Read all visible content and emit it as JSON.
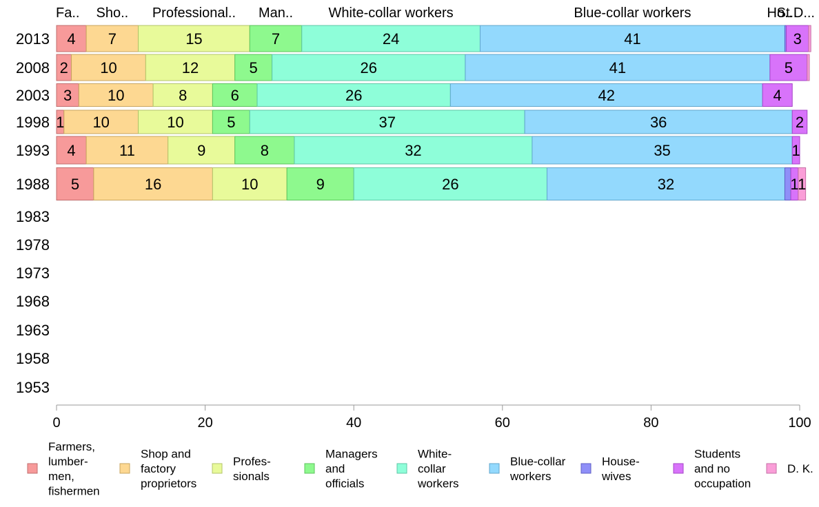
{
  "chart_data": {
    "type": "bar",
    "orientation": "horizontal",
    "stacked": true,
    "categories": [
      "2013",
      "2008",
      "2003",
      "1998",
      "1993",
      "1988",
      "1983",
      "1978",
      "1973",
      "1968",
      "1963",
      "1958",
      "1953"
    ],
    "xlim": [
      0,
      100
    ],
    "xticks": [
      0,
      20,
      40,
      60,
      80,
      100
    ],
    "grid": false,
    "legend_position": "bottom",
    "top_labels": [
      "Fa..",
      "Sho..",
      "Professional..",
      "Man..",
      "White-collar workers",
      "Blue-collar workers",
      "Ho..",
      "St..",
      "D..."
    ],
    "series": [
      {
        "name": "Farmers, lumber-men, fishermen",
        "legend_lines": [
          "Farmers,",
          "lumber-",
          "men,",
          "fishermen"
        ],
        "color": "#f79a9a",
        "edge": "#c26d6d",
        "values": [
          4,
          2,
          3,
          1,
          4,
          5,
          null,
          null,
          null,
          null,
          null,
          null,
          null
        ]
      },
      {
        "name": "Shop and factory proprietors",
        "legend_lines": [
          "Shop and",
          "factory",
          "proprietors"
        ],
        "color": "#fdd892",
        "edge": "#c8a55f",
        "values": [
          7,
          10,
          10,
          10,
          11,
          16,
          null,
          null,
          null,
          null,
          null,
          null,
          null
        ]
      },
      {
        "name": "Profes-sionals",
        "legend_lines": [
          "Profes-",
          "sionals"
        ],
        "color": "#e8fa9a",
        "edge": "#b3c46a",
        "values": [
          15,
          12,
          8,
          10,
          9,
          10,
          null,
          null,
          null,
          null,
          null,
          null,
          null
        ]
      },
      {
        "name": "Managers and officials",
        "legend_lines": [
          "Managers",
          "and",
          "officials"
        ],
        "color": "#8ef98e",
        "edge": "#5cc45c",
        "values": [
          7,
          5,
          6,
          5,
          8,
          9,
          null,
          null,
          null,
          null,
          null,
          null,
          null
        ]
      },
      {
        "name": "White-collar workers",
        "legend_lines": [
          "White-",
          "collar",
          "workers"
        ],
        "color": "#8efed9",
        "edge": "#5ec7a6",
        "values": [
          24,
          26,
          26,
          37,
          32,
          26,
          null,
          null,
          null,
          null,
          null,
          null,
          null
        ]
      },
      {
        "name": "Blue-collar workers",
        "legend_lines": [
          "Blue-collar",
          "workers"
        ],
        "color": "#93d9fd",
        "edge": "#60a6cc",
        "values": [
          41,
          41,
          42,
          36,
          35,
          32,
          null,
          null,
          null,
          null,
          null,
          null,
          null
        ]
      },
      {
        "name": "House-wives",
        "legend_lines": [
          "House-",
          "wives"
        ],
        "color": "#8f8ff8",
        "edge": "#5f5fc6",
        "values": [
          0.2,
          0,
          0,
          0,
          0,
          0.8,
          null,
          null,
          null,
          null,
          null,
          null,
          null
        ]
      },
      {
        "name": "Students and no occupation",
        "legend_lines": [
          "Students",
          "and no",
          "occupation"
        ],
        "color": "#d873fa",
        "edge": "#a645c8",
        "values": [
          3,
          5,
          4,
          2,
          1,
          1,
          null,
          null,
          null,
          null,
          null,
          null,
          null
        ]
      },
      {
        "name": "D. K.",
        "legend_lines": [
          "D. K."
        ],
        "color": "#fa9ed8",
        "edge": "#c66fa6",
        "values": [
          0.3,
          0.3,
          0,
          0,
          0,
          1,
          null,
          null,
          null,
          null,
          null,
          null,
          null
        ]
      }
    ],
    "data_labels": [
      [
        "4",
        "7",
        "15",
        "7",
        "24",
        "41",
        "",
        "3",
        ""
      ],
      [
        "2",
        "10",
        "12",
        "5",
        "26",
        "41",
        "",
        "5",
        ""
      ],
      [
        "3",
        "10",
        "8",
        "6",
        "26",
        "42",
        "",
        "4",
        ""
      ],
      [
        "1",
        "10",
        "10",
        "5",
        "37",
        "36",
        "",
        "2",
        ""
      ],
      [
        "4",
        "11",
        "9",
        "8",
        "32",
        "35",
        "",
        "1",
        ""
      ],
      [
        "5",
        "16",
        "10",
        "9",
        "26",
        "32",
        "",
        "1",
        "1"
      ],
      [],
      [],
      [],
      [],
      [],
      [],
      []
    ]
  }
}
